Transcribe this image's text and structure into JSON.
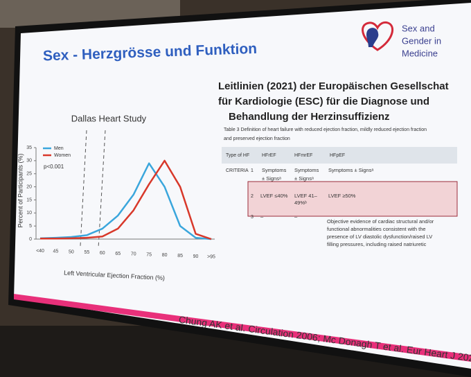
{
  "slide": {
    "title": "Sex - Herzgrösse und Funktion",
    "logo_lines": [
      "Sex and",
      "Gender in",
      "Medicine"
    ],
    "chart": {
      "type": "line",
      "title": "Dallas Heart Study",
      "x_label": "Left Ventricular Ejection Fraction (%)",
      "y_label": "Percent of Participants (%)",
      "annotation": "p<0.001",
      "categories": [
        "<40",
        "45",
        "50",
        "55",
        "60",
        "65",
        "70",
        "75",
        "80",
        "85",
        "90",
        ">95"
      ],
      "series": [
        {
          "name": "Men",
          "color": "#3aa6dc",
          "values": [
            0.3,
            0.5,
            0.8,
            1.5,
            4,
            9,
            17,
            29,
            20,
            5,
            0.5,
            0
          ]
        },
        {
          "name": "Women",
          "color": "#d8382a",
          "values": [
            0.2,
            0.2,
            0.3,
            0.5,
            1,
            4,
            11,
            21,
            30,
            20,
            2,
            0
          ]
        }
      ],
      "ylim": [
        0,
        35
      ],
      "yticks": [
        0,
        5,
        10,
        15,
        20,
        25,
        30,
        35
      ]
    },
    "heading_lines": [
      "Leitlinien (2021) der Europäischen Gesellschat",
      "für Kardiologie (ESC) für die Diagnose und",
      "Behandlung der Herzinsuffizienz"
    ],
    "table": {
      "caption_lines": [
        "Table 3  Definition of heart failure with reduced ejection fraction, mildly reduced ejection fraction",
        "and preserved ejection fraction"
      ],
      "header": [
        "Type of HF",
        "HFrEF",
        "HFmrEF",
        "HFpEF"
      ],
      "criteria_label": "CRITERIA",
      "rows": [
        {
          "number": "1",
          "cells": [
            "Symptoms",
            "± Signsᵃ",
            "Symptoms",
            "± Signsᵃ",
            "Symptoms ± Signsᵃ"
          ]
        },
        {
          "number": "2",
          "cells": [
            "LVEF ≤40%",
            "LVEF 41–",
            "49%ᵇ",
            "LVEF ≥50%"
          ]
        },
        {
          "number": "3",
          "cells": [
            "–",
            "–",
            "Objective evidence of cardiac structural and/or",
            "functional abnormalities consistent with the",
            "presence of LV diastolic dysfunction/raised LV",
            "filling pressures, including raised natriuretic"
          ]
        }
      ]
    },
    "citation": "Chung AK et al. Circulation 2006; Mc Donagh T et al. Eur Heart J 202"
  }
}
